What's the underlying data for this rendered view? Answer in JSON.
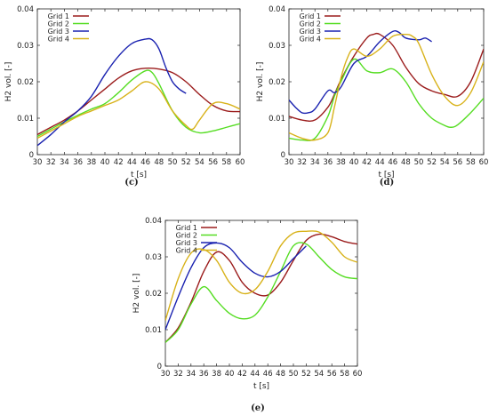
{
  "colors": {
    "Grid 1": "#9b1c1c",
    "Grid 2": "#55dd22",
    "Grid 3": "#1a22b0",
    "Grid 4": "#d8b21a"
  },
  "chart_data": [
    {
      "type": "line",
      "caption": "(c)",
      "xlabel": "t [s]",
      "ylabel": "H2 vol. [-]",
      "xlim": [
        30,
        60
      ],
      "ylim": [
        0,
        0.04
      ],
      "xticks": [
        "30",
        "32",
        "34",
        "36",
        "38",
        "40",
        "42",
        "44",
        "46",
        "48",
        "50",
        "52",
        "54",
        "56",
        "58",
        "60"
      ],
      "yticks": [
        "0",
        "0.01",
        "0.02",
        "0.03",
        "0.04"
      ],
      "legend": "top-left",
      "series": [
        {
          "name": "Grid 1",
          "x": [
            30,
            32,
            34,
            36,
            38,
            40,
            42,
            44,
            46,
            48,
            50,
            52,
            54,
            56,
            58,
            60
          ],
          "y": [
            0.0055,
            0.0075,
            0.0095,
            0.012,
            0.015,
            0.018,
            0.021,
            0.023,
            0.0237,
            0.0235,
            0.0225,
            0.02,
            0.0165,
            0.0135,
            0.012,
            0.0118
          ]
        },
        {
          "name": "Grid 2",
          "x": [
            30,
            32,
            34,
            36,
            38,
            40,
            42,
            44,
            46,
            47,
            48,
            50,
            52,
            54,
            56,
            58,
            60
          ],
          "y": [
            0.005,
            0.007,
            0.009,
            0.0108,
            0.0125,
            0.014,
            0.017,
            0.0205,
            0.023,
            0.0225,
            0.0195,
            0.012,
            0.0075,
            0.006,
            0.0065,
            0.0075,
            0.0085
          ]
        },
        {
          "name": "Grid 3",
          "x": [
            30,
            32,
            34,
            36,
            38,
            40,
            42,
            44,
            46,
            47,
            48,
            49,
            50,
            51,
            52
          ],
          "y": [
            0.0025,
            0.0055,
            0.009,
            0.012,
            0.016,
            0.022,
            0.027,
            0.0305,
            0.0317,
            0.0315,
            0.029,
            0.024,
            0.02,
            0.018,
            0.0168
          ]
        },
        {
          "name": "Grid 4",
          "x": [
            30,
            32,
            34,
            36,
            38,
            40,
            42,
            44,
            46,
            48,
            50,
            52,
            53,
            54,
            56,
            58,
            60
          ],
          "y": [
            0.0045,
            0.0065,
            0.0085,
            0.0105,
            0.012,
            0.0135,
            0.015,
            0.0175,
            0.02,
            0.018,
            0.012,
            0.008,
            0.007,
            0.0095,
            0.014,
            0.014,
            0.0125
          ]
        }
      ]
    },
    {
      "type": "line",
      "caption": "(d)",
      "xlabel": "t [s]",
      "ylabel": "H2 vol. [-]",
      "xlim": [
        30,
        60
      ],
      "ylim": [
        0,
        0.04
      ],
      "xticks": [
        "30",
        "32",
        "34",
        "36",
        "38",
        "40",
        "42",
        "44",
        "46",
        "48",
        "50",
        "52",
        "54",
        "56",
        "58",
        "60"
      ],
      "yticks": [
        "0",
        "0.01",
        "0.02",
        "0.03",
        "0.04"
      ],
      "legend": "top-left",
      "series": [
        {
          "name": "Grid 1",
          "x": [
            30,
            32,
            34,
            36,
            37,
            38,
            40,
            42,
            43,
            44,
            46,
            48,
            50,
            52,
            54,
            56,
            58,
            60
          ],
          "y": [
            0.0105,
            0.0095,
            0.0095,
            0.013,
            0.0165,
            0.0205,
            0.027,
            0.032,
            0.033,
            0.033,
            0.03,
            0.024,
            0.0195,
            0.0175,
            0.0165,
            0.016,
            0.02,
            0.029
          ]
        },
        {
          "name": "Grid 2",
          "x": [
            30,
            32,
            34,
            36,
            37,
            38,
            40,
            42,
            44,
            46,
            48,
            50,
            52,
            54,
            55,
            56,
            58,
            60
          ],
          "y": [
            0.0045,
            0.004,
            0.0045,
            0.0105,
            0.016,
            0.02,
            0.0262,
            0.023,
            0.0225,
            0.0235,
            0.02,
            0.014,
            0.01,
            0.008,
            0.0075,
            0.0082,
            0.0115,
            0.0155
          ]
        },
        {
          "name": "Grid 3",
          "x": [
            30,
            31,
            32,
            33,
            34,
            36,
            37,
            38,
            40,
            42,
            44,
            46,
            47,
            48,
            50,
            51,
            52
          ],
          "y": [
            0.015,
            0.013,
            0.0115,
            0.0115,
            0.0125,
            0.0175,
            0.017,
            0.0185,
            0.025,
            0.027,
            0.031,
            0.0338,
            0.0335,
            0.032,
            0.0315,
            0.032,
            0.031
          ]
        },
        {
          "name": "Grid 4",
          "x": [
            30,
            32,
            34,
            36,
            37,
            38,
            39,
            40,
            42,
            44,
            46,
            48,
            49,
            50,
            52,
            54,
            56,
            58,
            60
          ],
          "y": [
            0.006,
            0.0045,
            0.004,
            0.006,
            0.013,
            0.021,
            0.0265,
            0.029,
            0.027,
            0.029,
            0.0325,
            0.033,
            0.0325,
            0.0305,
            0.022,
            0.016,
            0.0135,
            0.017,
            0.0255
          ]
        }
      ]
    },
    {
      "type": "line",
      "caption": "(e)",
      "xlabel": "t [s]",
      "ylabel": "H2 vol. [-]",
      "xlim": [
        30,
        60
      ],
      "ylim": [
        0,
        0.04
      ],
      "xticks": [
        "30",
        "32",
        "34",
        "36",
        "38",
        "40",
        "42",
        "44",
        "46",
        "48",
        "50",
        "52",
        "54",
        "56",
        "58",
        "60"
      ],
      "yticks": [
        "0",
        "0.01",
        "0.02",
        "0.03",
        "0.04"
      ],
      "legend": "top-left",
      "series": [
        {
          "name": "Grid 1",
          "x": [
            30,
            32,
            34,
            36,
            38,
            40,
            42,
            44,
            46,
            48,
            50,
            52,
            54,
            56,
            58,
            60
          ],
          "y": [
            0.0065,
            0.0105,
            0.0175,
            0.026,
            0.0313,
            0.029,
            0.023,
            0.02,
            0.0195,
            0.023,
            0.029,
            0.0345,
            0.0362,
            0.0355,
            0.0342,
            0.0335
          ]
        },
        {
          "name": "Grid 2",
          "x": [
            30,
            32,
            34,
            36,
            38,
            40,
            42,
            44,
            46,
            48,
            50,
            52,
            54,
            56,
            58,
            60
          ],
          "y": [
            0.0065,
            0.01,
            0.017,
            0.0218,
            0.018,
            0.0145,
            0.013,
            0.014,
            0.019,
            0.026,
            0.033,
            0.0335,
            0.03,
            0.0265,
            0.0245,
            0.024
          ]
        },
        {
          "name": "Grid 3",
          "x": [
            30,
            32,
            34,
            36,
            38,
            40,
            42,
            44,
            46,
            48,
            50,
            52
          ],
          "y": [
            0.01,
            0.019,
            0.027,
            0.0325,
            0.0338,
            0.0325,
            0.0285,
            0.0255,
            0.0245,
            0.026,
            0.0295,
            0.033
          ]
        },
        {
          "name": "Grid 4",
          "x": [
            30,
            32,
            34,
            36,
            38,
            40,
            42,
            44,
            46,
            48,
            50,
            52,
            54,
            56,
            58,
            60
          ],
          "y": [
            0.0125,
            0.024,
            0.031,
            0.032,
            0.029,
            0.023,
            0.02,
            0.021,
            0.026,
            0.033,
            0.0365,
            0.037,
            0.0368,
            0.034,
            0.03,
            0.0285
          ]
        }
      ]
    }
  ]
}
